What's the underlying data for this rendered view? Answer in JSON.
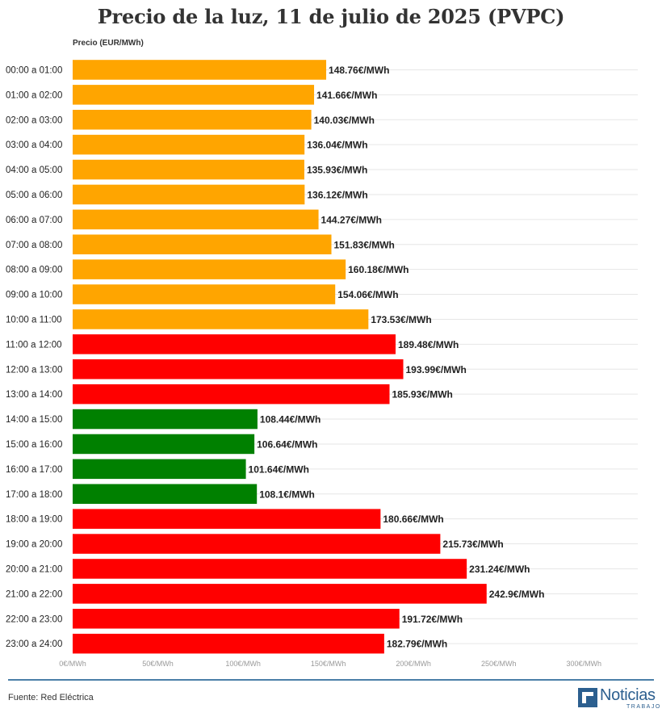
{
  "chart_data": {
    "type": "bar",
    "orientation": "horizontal",
    "title": "Precio de la luz, 11 de julio de 2025 (PVPC)",
    "axis_title": "Precio (EUR/MWh)",
    "xlim": [
      0,
      300
    ],
    "x_ticks": [
      {
        "value": 0,
        "label": "0€/MWh"
      },
      {
        "value": 50,
        "label": "50€/MWh"
      },
      {
        "value": 100,
        "label": "100€/MWh"
      },
      {
        "value": 150,
        "label": "150€/MWh"
      },
      {
        "value": 200,
        "label": "200€/MWh"
      },
      {
        "value": 250,
        "label": "250€/MWh"
      },
      {
        "value": 300,
        "label": "300€/MWh"
      }
    ],
    "grid": true,
    "colors": {
      "mid": "#ffa500",
      "high": "#ff0000",
      "low": "#008000"
    },
    "bars": [
      {
        "category": "00:00 a 01:00",
        "value": 148.76,
        "label": "148.76€/MWh",
        "level": "mid"
      },
      {
        "category": "01:00 a 02:00",
        "value": 141.66,
        "label": "141.66€/MWh",
        "level": "mid"
      },
      {
        "category": "02:00 a 03:00",
        "value": 140.03,
        "label": "140.03€/MWh",
        "level": "mid"
      },
      {
        "category": "03:00 a 04:00",
        "value": 136.04,
        "label": "136.04€/MWh",
        "level": "mid"
      },
      {
        "category": "04:00 a 05:00",
        "value": 135.93,
        "label": "135.93€/MWh",
        "level": "mid"
      },
      {
        "category": "05:00 a 06:00",
        "value": 136.12,
        "label": "136.12€/MWh",
        "level": "mid"
      },
      {
        "category": "06:00 a 07:00",
        "value": 144.27,
        "label": "144.27€/MWh",
        "level": "mid"
      },
      {
        "category": "07:00 a 08:00",
        "value": 151.83,
        "label": "151.83€/MWh",
        "level": "mid"
      },
      {
        "category": "08:00 a 09:00",
        "value": 160.18,
        "label": "160.18€/MWh",
        "level": "mid"
      },
      {
        "category": "09:00 a 10:00",
        "value": 154.06,
        "label": "154.06€/MWh",
        "level": "mid"
      },
      {
        "category": "10:00 a 11:00",
        "value": 173.53,
        "label": "173.53€/MWh",
        "level": "mid"
      },
      {
        "category": "11:00 a 12:00",
        "value": 189.48,
        "label": "189.48€/MWh",
        "level": "high"
      },
      {
        "category": "12:00 a 13:00",
        "value": 193.99,
        "label": "193.99€/MWh",
        "level": "high"
      },
      {
        "category": "13:00 a 14:00",
        "value": 185.93,
        "label": "185.93€/MWh",
        "level": "high"
      },
      {
        "category": "14:00 a 15:00",
        "value": 108.44,
        "label": "108.44€/MWh",
        "level": "low"
      },
      {
        "category": "15:00 a 16:00",
        "value": 106.64,
        "label": "106.64€/MWh",
        "level": "low"
      },
      {
        "category": "16:00 a 17:00",
        "value": 101.64,
        "label": "101.64€/MWh",
        "level": "low"
      },
      {
        "category": "17:00 a 18:00",
        "value": 108.1,
        "label": "108.1€/MWh",
        "level": "low"
      },
      {
        "category": "18:00 a 19:00",
        "value": 180.66,
        "label": "180.66€/MWh",
        "level": "high"
      },
      {
        "category": "19:00 a 20:00",
        "value": 215.73,
        "label": "215.73€/MWh",
        "level": "high"
      },
      {
        "category": "20:00 a 21:00",
        "value": 231.24,
        "label": "231.24€/MWh",
        "level": "high"
      },
      {
        "category": "21:00 a 22:00",
        "value": 242.9,
        "label": "242.9€/MWh",
        "level": "high"
      },
      {
        "category": "22:00 a 23:00",
        "value": 191.72,
        "label": "191.72€/MWh",
        "level": "high"
      },
      {
        "category": "23:00 a 24:00",
        "value": 182.79,
        "label": "182.79€/MWh",
        "level": "high"
      }
    ]
  },
  "footer": {
    "source": "Fuente: Red Eléctrica",
    "logo_word": "Noticias",
    "logo_sub": "TRABAJO",
    "logo_icon": "noticias-trabajo-logo-icon",
    "accent": "#2c5f8f"
  }
}
